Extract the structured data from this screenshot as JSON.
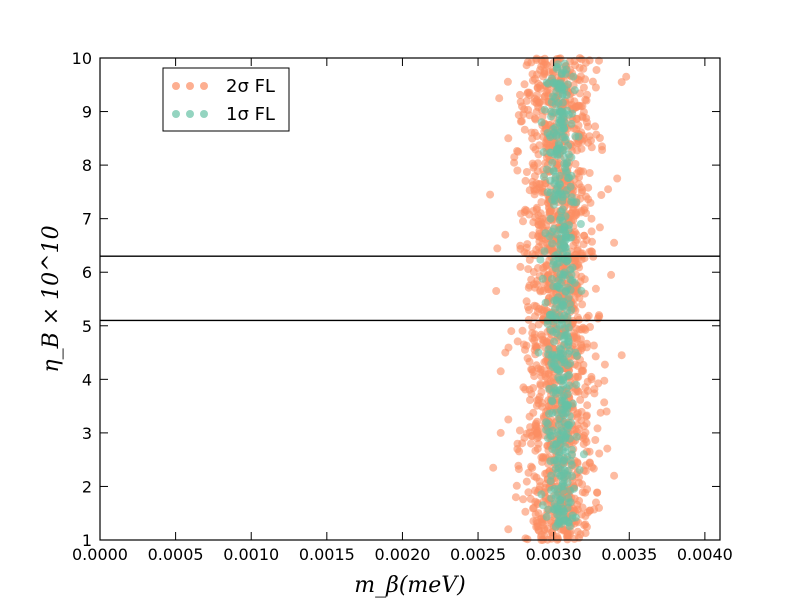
{
  "chart_data": {
    "type": "scatter",
    "title": "",
    "xlabel": "m_β(meV)",
    "ylabel": "η_B × 10^10",
    "xlim": [
      0.0,
      0.0041
    ],
    "ylim": [
      1,
      10
    ],
    "x_ticks": [
      "0.0000",
      "0.0005",
      "0.0010",
      "0.0015",
      "0.0020",
      "0.0025",
      "0.0030",
      "0.0035",
      "0.0040"
    ],
    "x_tick_values": [
      0.0,
      0.0005,
      0.001,
      0.0015,
      0.002,
      0.0025,
      0.003,
      0.0035,
      0.004
    ],
    "y_ticks": [
      "1",
      "2",
      "3",
      "4",
      "5",
      "6",
      "7",
      "8",
      "9",
      "10"
    ],
    "y_tick_values": [
      1,
      2,
      3,
      4,
      5,
      6,
      7,
      8,
      9,
      10
    ],
    "grid": false,
    "legend_position": "top-left",
    "hlines": [
      5.1,
      6.3
    ],
    "series": [
      {
        "name": "2σ FL",
        "color": "#fc8d62",
        "x_range": [
          0.00255,
          0.0035
        ],
        "x_center": 0.00303,
        "y_range": [
          1,
          10
        ],
        "points": [
          [
            0.0027,
            1.2
          ],
          [
            0.00315,
            1.35
          ],
          [
            0.0029,
            1.5
          ],
          [
            0.0033,
            1.6
          ],
          [
            0.00275,
            1.8
          ],
          [
            0.0031,
            1.9
          ],
          [
            0.00295,
            2.05
          ],
          [
            0.0034,
            2.2
          ],
          [
            0.0026,
            2.35
          ],
          [
            0.003,
            2.5
          ],
          [
            0.00322,
            2.65
          ],
          [
            0.00285,
            2.8
          ],
          [
            0.0032,
            2.95
          ],
          [
            0.00305,
            3.1
          ],
          [
            0.0027,
            3.25
          ],
          [
            0.00335,
            3.4
          ],
          [
            0.0029,
            3.55
          ],
          [
            0.0031,
            3.7
          ],
          [
            0.0028,
            3.85
          ],
          [
            0.00325,
            4.0
          ],
          [
            0.00265,
            4.15
          ],
          [
            0.003,
            4.3
          ],
          [
            0.00345,
            4.45
          ],
          [
            0.00288,
            4.6
          ],
          [
            0.00318,
            4.75
          ],
          [
            0.00272,
            4.9
          ],
          [
            0.003,
            5.05
          ],
          [
            0.0033,
            5.2
          ],
          [
            0.00283,
            5.35
          ],
          [
            0.0031,
            5.5
          ],
          [
            0.00262,
            5.65
          ],
          [
            0.00297,
            5.8
          ],
          [
            0.00338,
            5.95
          ],
          [
            0.00278,
            6.1
          ],
          [
            0.00312,
            6.25
          ],
          [
            0.00292,
            6.4
          ],
          [
            0.0034,
            6.55
          ],
          [
            0.00268,
            6.7
          ],
          [
            0.00305,
            6.85
          ],
          [
            0.00325,
            7.0
          ],
          [
            0.00282,
            7.15
          ],
          [
            0.00315,
            7.3
          ],
          [
            0.00258,
            7.45
          ],
          [
            0.00298,
            7.6
          ],
          [
            0.00342,
            7.75
          ],
          [
            0.00276,
            7.9
          ],
          [
            0.0031,
            8.05
          ],
          [
            0.0029,
            8.2
          ],
          [
            0.00332,
            8.35
          ],
          [
            0.0027,
            8.5
          ],
          [
            0.00302,
            8.65
          ],
          [
            0.00322,
            8.8
          ],
          [
            0.0028,
            8.95
          ],
          [
            0.00318,
            9.1
          ],
          [
            0.00264,
            9.25
          ],
          [
            0.00296,
            9.4
          ],
          [
            0.00345,
            9.55
          ],
          [
            0.00286,
            9.7
          ],
          [
            0.00308,
            9.85
          ],
          [
            0.0033,
            9.95
          ],
          [
            0.00292,
            1.1
          ],
          [
            0.00328,
            1.7
          ],
          [
            0.00302,
            2.15
          ],
          [
            0.00276,
            2.7
          ],
          [
            0.00312,
            3.3
          ],
          [
            0.00295,
            3.9
          ],
          [
            0.00268,
            4.5
          ],
          [
            0.00322,
            5.15
          ],
          [
            0.00284,
            5.75
          ],
          [
            0.00318,
            6.35
          ],
          [
            0.0029,
            6.95
          ],
          [
            0.00336,
            7.55
          ],
          [
            0.00274,
            8.15
          ],
          [
            0.00306,
            8.75
          ],
          [
            0.00284,
            9.35
          ],
          [
            0.00348,
            9.65
          ],
          [
            0.0031,
            4.05
          ],
          [
            0.00265,
            3.0
          ],
          [
            0.0032,
            2.3
          ],
          [
            0.00298,
            7.35
          ]
        ]
      },
      {
        "name": "1σ FL",
        "color": "#66c2a5",
        "x_range": [
          0.00285,
          0.00325
        ],
        "x_center": 0.00305,
        "y_range": [
          1.2,
          9.9
        ],
        "points": [
          [
            0.00305,
            1.3
          ],
          [
            0.0031,
            1.7
          ],
          [
            0.00298,
            2.1
          ],
          [
            0.00312,
            2.4
          ],
          [
            0.00302,
            2.8
          ],
          [
            0.00295,
            3.2
          ],
          [
            0.00308,
            3.5
          ],
          [
            0.00315,
            3.9
          ],
          [
            0.003,
            4.3
          ],
          [
            0.0031,
            4.7
          ],
          [
            0.00296,
            5.1
          ],
          [
            0.00306,
            5.4
          ],
          [
            0.00314,
            5.8
          ],
          [
            0.003,
            6.2
          ],
          [
            0.00308,
            6.6
          ],
          [
            0.00298,
            7.0
          ],
          [
            0.00312,
            7.4
          ],
          [
            0.00304,
            7.8
          ],
          [
            0.0031,
            8.2
          ],
          [
            0.00296,
            8.6
          ],
          [
            0.00306,
            9.0
          ],
          [
            0.00314,
            9.4
          ],
          [
            0.00302,
            9.8
          ],
          [
            0.0032,
            2.6
          ],
          [
            0.0029,
            4.5
          ],
          [
            0.00318,
            6.9
          ],
          [
            0.00292,
            8.8
          ]
        ]
      }
    ]
  }
}
